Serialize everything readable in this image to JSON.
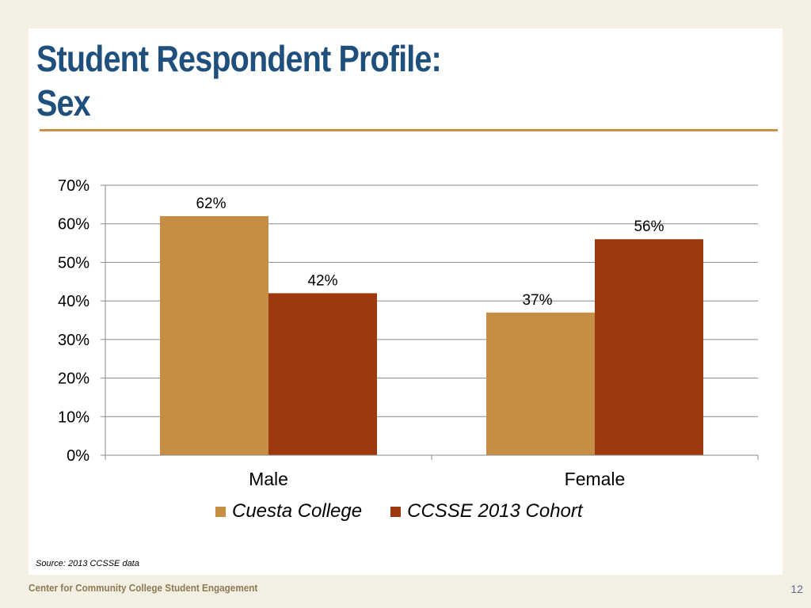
{
  "slide": {
    "title_line1": "Student Respondent Profile:",
    "title_line2": "Sex",
    "source": "Source: 2013 CCSSE data",
    "footer": "Center for Community College Student Engagement",
    "page_number": "12"
  },
  "colors": {
    "background": "#f3efe3",
    "title": "#1f4f7d",
    "rule": "#c8914a",
    "series1": "#c68e45",
    "series2": "#9e380e"
  },
  "chart_data": {
    "type": "bar",
    "categories": [
      "Male",
      "Female"
    ],
    "series": [
      {
        "name": "Cuesta College",
        "values": [
          62,
          37
        ],
        "labels": [
          "62%",
          "37%"
        ]
      },
      {
        "name": "CCSSE 2013 Cohort",
        "values": [
          42,
          56
        ],
        "labels": [
          "42%",
          "56%"
        ]
      }
    ],
    "ylim": [
      0,
      70
    ],
    "yticks": [
      0,
      10,
      20,
      30,
      40,
      50,
      60,
      70
    ],
    "ytick_labels": [
      "0%",
      "10%",
      "20%",
      "30%",
      "40%",
      "50%",
      "60%",
      "70%"
    ],
    "grid": true,
    "legend_position": "bottom"
  }
}
